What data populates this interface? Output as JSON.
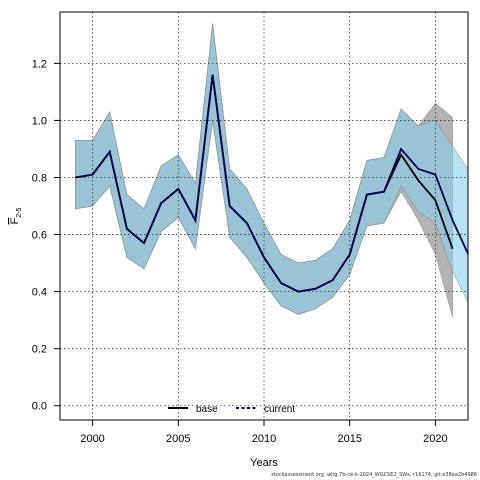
{
  "chart_data": {
    "type": "line",
    "title": "",
    "xlabel": "Years",
    "ylabel_main": "F",
    "ylabel_sub": "2-5",
    "xlim": [
      1998.1,
      2021.9
    ],
    "ylim": [
      -0.05,
      1.38
    ],
    "xticks": [
      2000,
      2005,
      2010,
      2015,
      2020
    ],
    "yticks": [
      0.0,
      0.2,
      0.4,
      0.6,
      0.8,
      1.0,
      1.2
    ],
    "ytick_labels": [
      "0.0",
      "0.2",
      "0.4",
      "0.6",
      "0.8",
      "1.0",
      "1.2"
    ],
    "grid": true,
    "legend_position": "bottom-center",
    "series": [
      {
        "name": "base",
        "color": "#000000",
        "band_color": "#808080",
        "x": [
          1999,
          2000,
          2001,
          2002,
          2003,
          2004,
          2005,
          2006,
          2007,
          2008,
          2009,
          2010,
          2011,
          2012,
          2013,
          2014,
          2015,
          2016,
          2017,
          2018,
          2019,
          2020,
          2021
        ],
        "values": [
          0.8,
          0.81,
          0.89,
          0.62,
          0.57,
          0.71,
          0.76,
          0.65,
          1.16,
          0.7,
          0.64,
          0.52,
          0.43,
          0.4,
          0.41,
          0.44,
          0.53,
          0.74,
          0.75,
          0.88,
          0.79,
          0.72,
          0.55
        ],
        "lower": [
          0.69,
          0.7,
          0.77,
          0.52,
          0.48,
          0.61,
          0.66,
          0.55,
          1.0,
          0.59,
          0.52,
          0.43,
          0.35,
          0.32,
          0.34,
          0.38,
          0.46,
          0.63,
          0.64,
          0.75,
          0.65,
          0.53,
          0.31
        ],
        "upper": [
          0.93,
          0.93,
          1.03,
          0.74,
          0.69,
          0.84,
          0.88,
          0.78,
          1.34,
          0.83,
          0.76,
          0.64,
          0.53,
          0.5,
          0.51,
          0.55,
          0.65,
          0.86,
          0.87,
          1.04,
          0.98,
          1.06,
          1.01
        ]
      },
      {
        "name": "current",
        "color": "#00008b",
        "band_color": "#87ceeb",
        "x": [
          1999,
          2000,
          2001,
          2002,
          2003,
          2004,
          2005,
          2006,
          2007,
          2008,
          2009,
          2010,
          2011,
          2012,
          2013,
          2014,
          2015,
          2016,
          2017,
          2018,
          2019,
          2020,
          2021,
          2022
        ],
        "values": [
          0.8,
          0.81,
          0.89,
          0.62,
          0.57,
          0.71,
          0.76,
          0.65,
          1.16,
          0.7,
          0.64,
          0.52,
          0.43,
          0.4,
          0.41,
          0.44,
          0.53,
          0.74,
          0.75,
          0.9,
          0.83,
          0.81,
          0.65,
          0.52
        ],
        "lower": [
          0.69,
          0.7,
          0.77,
          0.52,
          0.48,
          0.61,
          0.66,
          0.55,
          1.0,
          0.59,
          0.52,
          0.43,
          0.35,
          0.32,
          0.34,
          0.38,
          0.46,
          0.63,
          0.64,
          0.77,
          0.68,
          0.64,
          0.47,
          0.35
        ],
        "upper": [
          0.93,
          0.93,
          1.03,
          0.74,
          0.69,
          0.84,
          0.88,
          0.78,
          1.34,
          0.83,
          0.76,
          0.64,
          0.53,
          0.5,
          0.51,
          0.55,
          0.65,
          0.86,
          0.87,
          1.04,
          0.98,
          1.0,
          0.91,
          0.82
        ]
      }
    ]
  },
  "footer_text": "stockassessment.org, whg.7b-ce-k-2024_WGCSE2_SWs, r16174, git:e38ea2b4986"
}
